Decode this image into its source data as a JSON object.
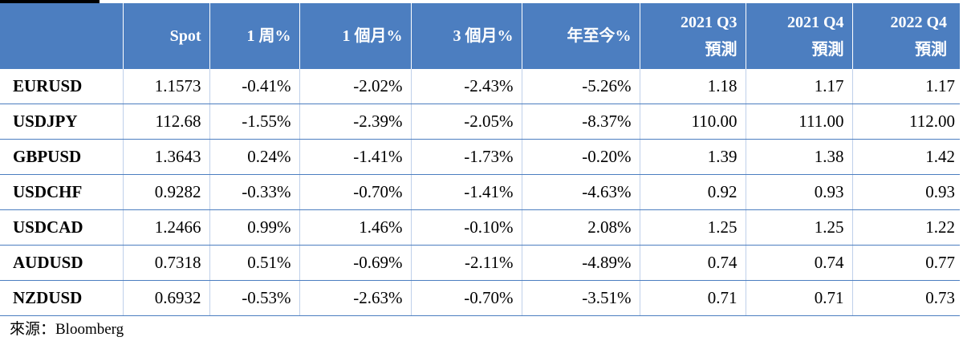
{
  "table": {
    "headers": [
      {
        "line1": "",
        "line2": ""
      },
      {
        "line1": "Spot",
        "line2": ""
      },
      {
        "line1": "1 周%",
        "line2": ""
      },
      {
        "line1": "1 個月%",
        "line2": ""
      },
      {
        "line1": "3 個月%",
        "line2": ""
      },
      {
        "line1": "年至今%",
        "line2": ""
      },
      {
        "line1": "2021 Q3",
        "line2": "預測"
      },
      {
        "line1": "2021 Q4",
        "line2": "預測"
      },
      {
        "line1": "2022 Q4",
        "line2": "預測"
      }
    ],
    "rows": [
      [
        "EURUSD",
        "1.1573",
        "-0.41%",
        "-2.02%",
        "-2.43%",
        "-5.26%",
        "1.18",
        "1.17",
        "1.17"
      ],
      [
        "USDJPY",
        "112.68",
        "-1.55%",
        "-2.39%",
        "-2.05%",
        "-8.37%",
        "110.00",
        "111.00",
        "112.00"
      ],
      [
        "GBPUSD",
        "1.3643",
        "0.24%",
        "-1.41%",
        "-1.73%",
        "-0.20%",
        "1.39",
        "1.38",
        "1.42"
      ],
      [
        "USDCHF",
        "0.9282",
        "-0.33%",
        "-0.70%",
        "-1.41%",
        "-4.63%",
        "0.92",
        "0.93",
        "0.93"
      ],
      [
        "USDCAD",
        "1.2466",
        "0.99%",
        "1.46%",
        "-0.10%",
        "2.08%",
        "1.25",
        "1.25",
        "1.22"
      ],
      [
        "AUDUSD",
        "0.7318",
        "0.51%",
        "-0.69%",
        "-2.11%",
        "-4.89%",
        "0.74",
        "0.74",
        "0.77"
      ],
      [
        "NZDUSD",
        "0.6932",
        "-0.53%",
        "-2.63%",
        "-0.70%",
        "-3.51%",
        "0.71",
        "0.71",
        "0.73"
      ]
    ]
  },
  "source": "來源：Bloomberg",
  "colors": {
    "header_bg": "#4c7ec0",
    "header_text": "#ffffff",
    "grid": "#4c7ec0"
  }
}
